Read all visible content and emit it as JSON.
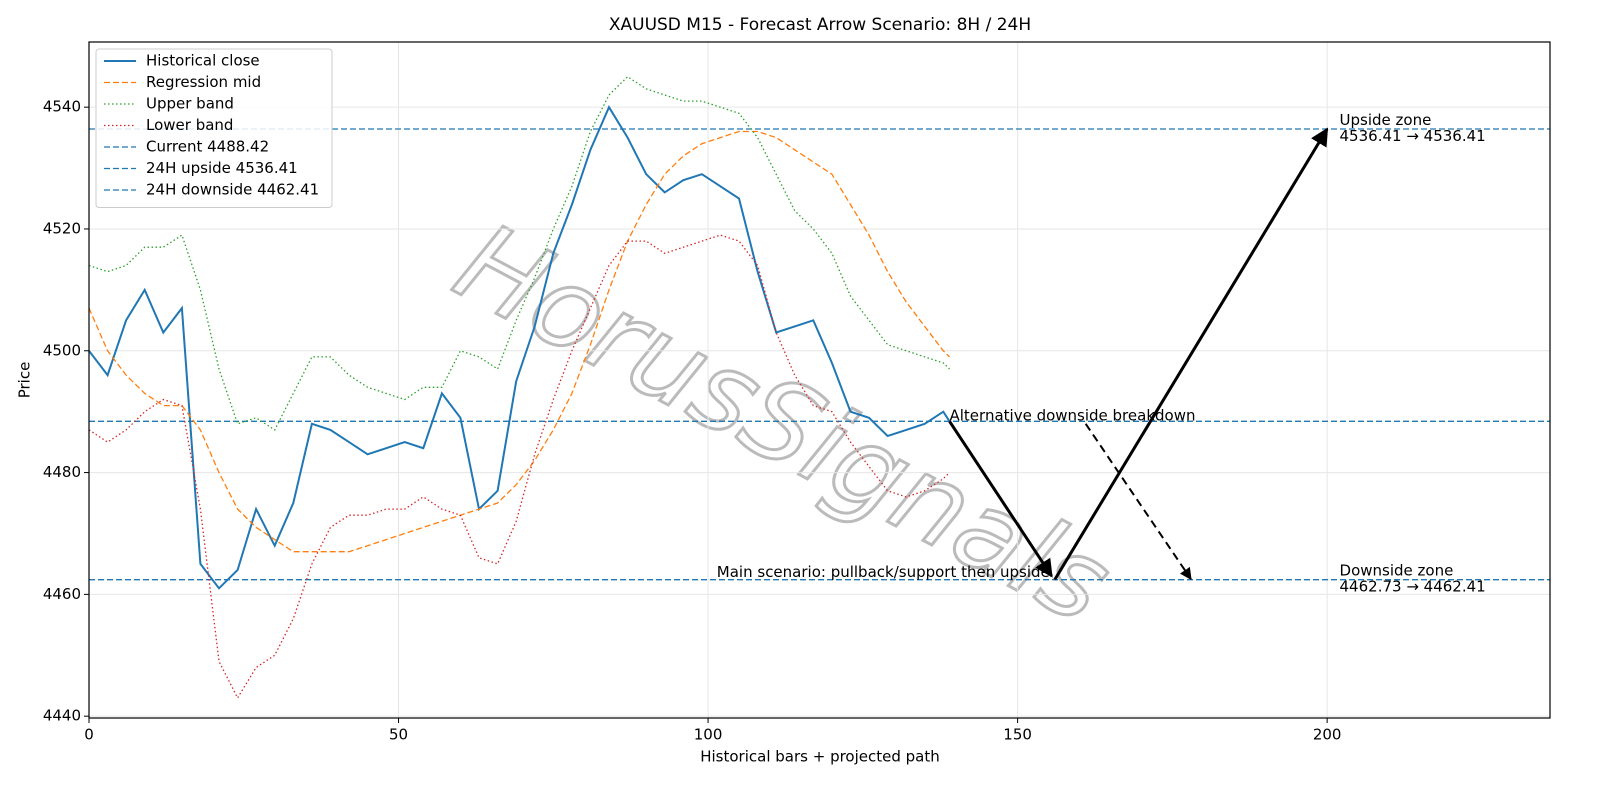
{
  "chart_data": {
    "type": "line",
    "title": "XAUUSD M15 - Forecast Arrow Scenario: 8H / 24H",
    "x_label": "Historical bars + projected path",
    "y_label": "Price",
    "watermark": "HorusSignals",
    "xlim": [
      0,
      236
    ],
    "xticks": [
      0,
      50,
      100,
      150,
      200
    ],
    "ylim": [
      4439.7,
      4550.7
    ],
    "yticks": [
      4440,
      4460,
      4480,
      4500,
      4520,
      4540
    ],
    "grid": true,
    "legend": "upper-left",
    "x": [
      0,
      3,
      6,
      9,
      12,
      15,
      18,
      21,
      24,
      27,
      30,
      33,
      36,
      39,
      42,
      45,
      48,
      51,
      54,
      57,
      60,
      63,
      66,
      69,
      72,
      75,
      78,
      81,
      84,
      87,
      90,
      93,
      96,
      99,
      102,
      105,
      108,
      111,
      114,
      117,
      120,
      123,
      126,
      129,
      132,
      135,
      138,
      139
    ],
    "series": [
      {
        "name": "Historical close",
        "color": "#1f77b4",
        "linestyle": "solid",
        "width": 2,
        "values": [
          4500,
          4496,
          4505,
          4510,
          4503,
          4507,
          4465,
          4461,
          4464,
          4474,
          4468,
          4475,
          4488,
          4487,
          4485,
          4483,
          4484,
          4485,
          4484,
          4493,
          4489,
          4474,
          4477,
          4495,
          4504,
          4516,
          4524,
          4533,
          4540,
          4535,
          4529,
          4526,
          4528,
          4529,
          4527,
          4525,
          4513,
          4503,
          4504,
          4505,
          4498,
          4490,
          4489,
          4486,
          4487,
          4488,
          4490,
          4488.42
        ]
      },
      {
        "name": "Regression mid",
        "color": "#ff7f0e",
        "linestyle": "dashed",
        "width": 1.3,
        "values": [
          4507,
          4500,
          4496,
          4493,
          4491,
          4491,
          4487,
          4480,
          4474,
          4471,
          4469,
          4467,
          4467,
          4467,
          4467,
          4468,
          4469,
          4470,
          4471,
          4472,
          4473,
          4474,
          4475,
          4478,
          4482,
          4487,
          4493,
          4501,
          4510,
          4518,
          4524,
          4529,
          4532,
          4534,
          4535,
          4536,
          4536,
          4535,
          4533,
          4531,
          4529,
          4524,
          4519,
          4513,
          4508,
          4504,
          4500,
          4499
        ]
      },
      {
        "name": "Upper band",
        "color": "#2ca02c",
        "linestyle": "dotted",
        "width": 1.3,
        "values": [
          4514,
          4513,
          4514,
          4517,
          4517,
          4519,
          4510,
          4497,
          4488,
          4489,
          4487,
          4493,
          4499,
          4499,
          4496,
          4494,
          4493,
          4492,
          4494,
          4494,
          4500,
          4499,
          4497,
          4505,
          4512,
          4520,
          4527,
          4536,
          4542,
          4545,
          4543,
          4542,
          4541,
          4541,
          4540,
          4539,
          4535,
          4529,
          4523,
          4520,
          4516,
          4509,
          4505,
          4501,
          4500,
          4499,
          4498,
          4497
        ]
      },
      {
        "name": "Lower band",
        "color": "#d62728",
        "linestyle": "dotted",
        "width": 1.3,
        "values": [
          4487,
          4485,
          4487,
          4490,
          4492,
          4491,
          4474,
          4449,
          4443,
          4448,
          4450,
          4456,
          4465,
          4471,
          4473,
          4473,
          4474,
          4474,
          4476,
          4474,
          4473,
          4466,
          4465,
          4472,
          4483,
          4492,
          4500,
          4507,
          4514,
          4518,
          4518,
          4516,
          4517,
          4518,
          4519,
          4518,
          4514,
          4503,
          4496,
          4491,
          4490,
          4485,
          4481,
          4477,
          4476,
          4477,
          4479,
          4480
        ]
      }
    ],
    "hlines": [
      {
        "name": "Current 4488.42",
        "color": "#1f77b4",
        "value": 4488.42
      },
      {
        "name": "24H upside 4536.41",
        "color": "#1f77b4",
        "value": 4536.41
      },
      {
        "name": "24H downside 4462.41",
        "color": "#1f77b4",
        "value": 4462.41
      }
    ],
    "arrows": [
      {
        "from": [
          139,
          4488.42
        ],
        "to": [
          155.5,
          4463
        ],
        "linestyle": "solid"
      },
      {
        "from": [
          156,
          4462.41
        ],
        "to": [
          200,
          4536.41
        ],
        "linestyle": "solid"
      },
      {
        "from": [
          161,
          4488
        ],
        "to": [
          178,
          4462.5
        ],
        "linestyle": "dashed"
      }
    ],
    "annotations": [
      {
        "lines": [
          "Alternative downside breakdown"
        ],
        "x": 139,
        "y": 4489.3,
        "anchor": "start"
      },
      {
        "lines": [
          "Main scenario: pullback/support then upside"
        ],
        "x": 155.2,
        "y": 4463.6,
        "anchor": "end"
      },
      {
        "lines": [
          "Upside zone",
          "4536.41 → 4536.41"
        ],
        "x": 202,
        "y": 4537.8,
        "anchor": "start"
      },
      {
        "lines": [
          "Downside zone",
          "4462.73 → 4462.41"
        ],
        "x": 202,
        "y": 4463.8,
        "anchor": "start"
      }
    ]
  }
}
